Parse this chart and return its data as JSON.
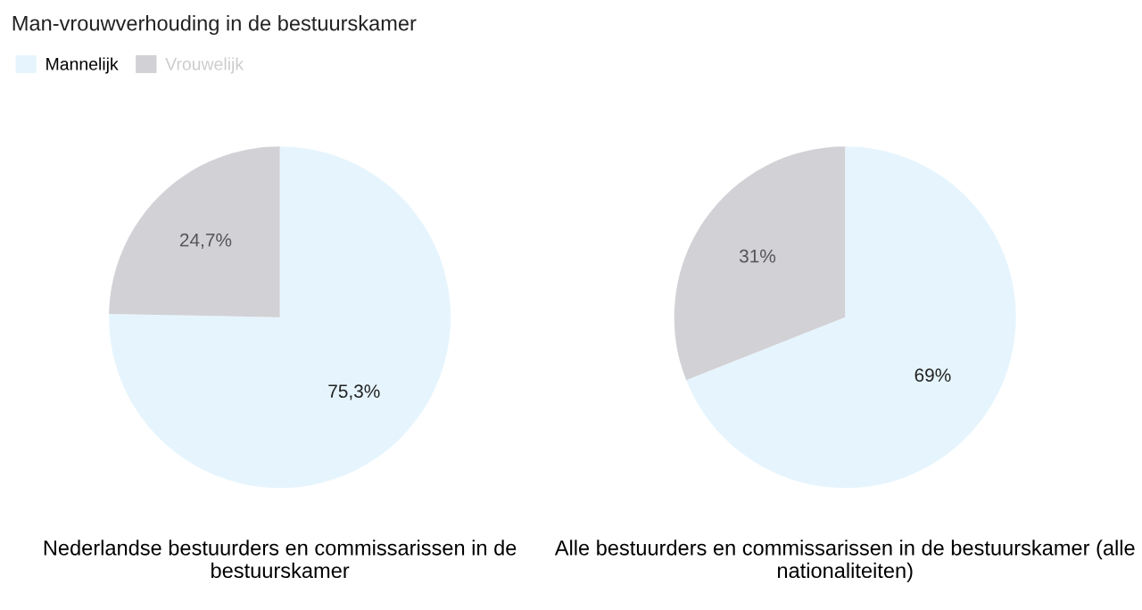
{
  "chart_data": [
    {
      "type": "pie",
      "title": "Man-vrouwverhouding in de bestuurskamer",
      "legend": "top left",
      "categories": [
        "Mannelijk",
        "Vrouwelijk"
      ],
      "values": [
        75.3,
        24.7
      ],
      "colors": [
        "#e6f5fd",
        "#d1d1d6"
      ],
      "value_labels": [
        "75,3%",
        "24,7%"
      ],
      "xlabel": "Nederlandse bestuurders en commissarissen in de bestuurskamer"
    },
    {
      "type": "pie",
      "categories": [
        null,
        null
      ],
      "values": [
        69,
        31
      ],
      "colors": [
        "#e6f5fd",
        "#d1d1d6"
      ],
      "value_labels": [
        "69%",
        "31%"
      ],
      "xlabel": "Alle bestuurders en commissarissen in de bestuurskamer (alle nationaliteiten)"
    }
  ]
}
